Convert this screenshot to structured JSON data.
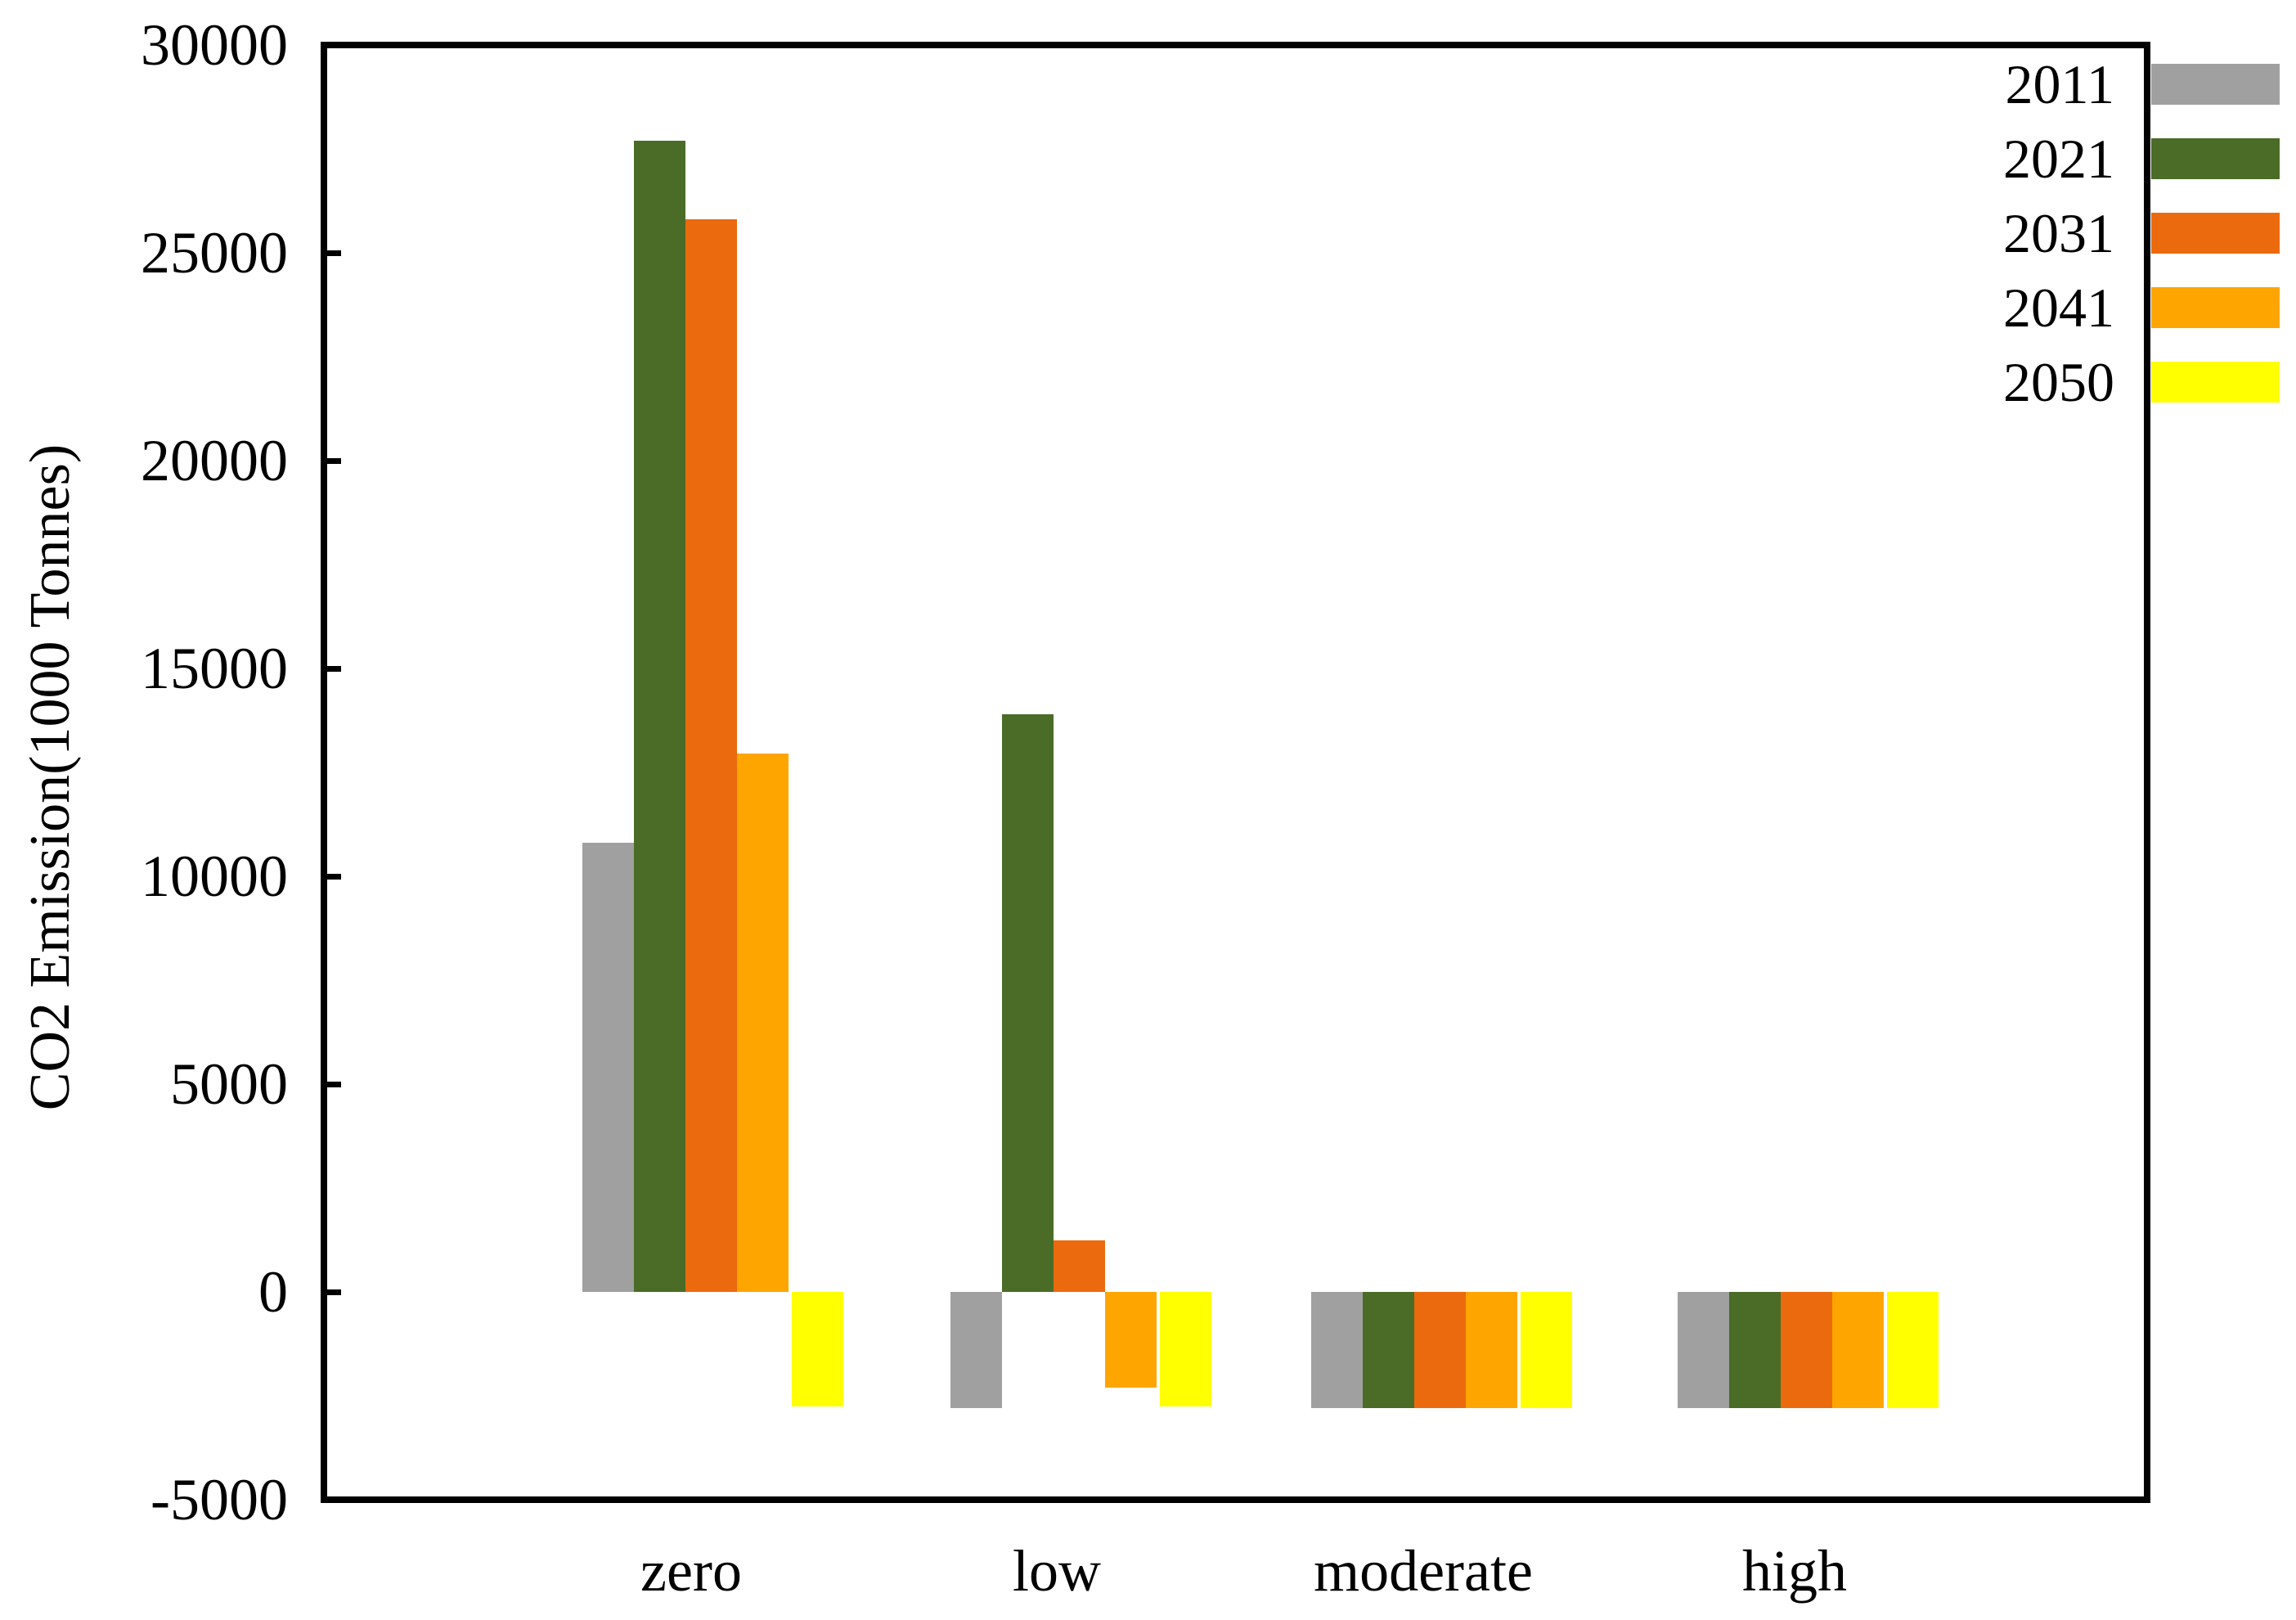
{
  "chart_data": {
    "type": "bar",
    "title": "",
    "xlabel": "",
    "ylabel": "CO2 Emission(1000 Tonnes)",
    "categories": [
      "zero",
      "low",
      "moderate",
      "high"
    ],
    "series": [
      {
        "name": "2011",
        "color": "#A0A0A0",
        "values": [
          10800,
          -2800,
          -2800,
          -2800
        ]
      },
      {
        "name": "2021",
        "color": "#4A6C26",
        "values": [
          27700,
          13900,
          -2800,
          -2800
        ]
      },
      {
        "name": "2031",
        "color": "#EC6A0E",
        "values": [
          25800,
          1250,
          -2800,
          -2800
        ]
      },
      {
        "name": "2041",
        "color": "#FFA500",
        "values": [
          12950,
          -2300,
          -2800,
          -2800
        ]
      },
      {
        "name": "2050",
        "color": "#FFFF00",
        "values": [
          -2750,
          -2750,
          -2800,
          -2800
        ]
      }
    ],
    "ylim": [
      -5000,
      30000
    ],
    "yticks": [
      30000,
      25000,
      20000,
      15000,
      10000,
      5000,
      0,
      -5000
    ],
    "yticks_with_marks": [
      25000,
      20000,
      15000,
      10000,
      5000,
      0
    ],
    "grid": false,
    "legend_position": "top-right-outside"
  }
}
